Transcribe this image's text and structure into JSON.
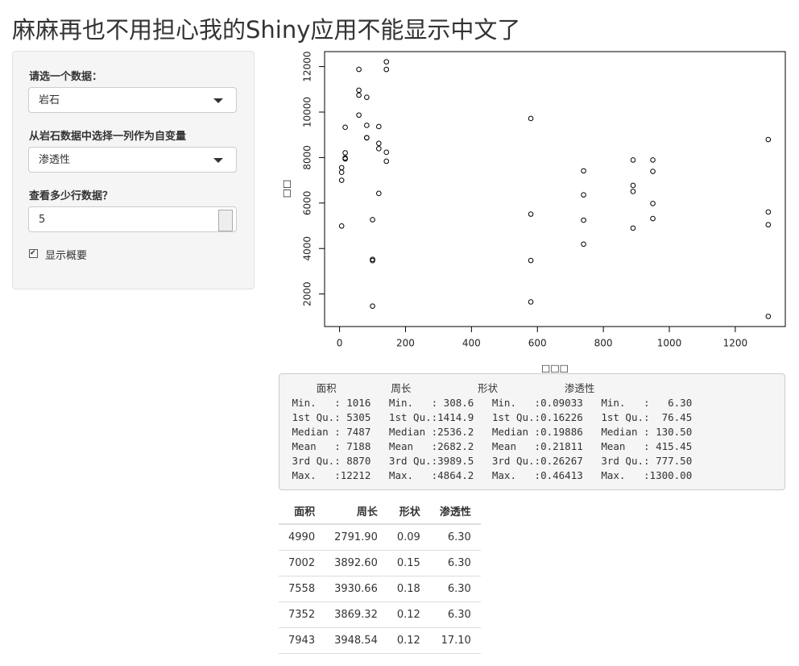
{
  "header": {
    "title": "麻麻再也不用担心我的Shiny应用不能显示中文了"
  },
  "sidebar": {
    "dataset_label": "请选一个数据：",
    "dataset_value": "岩石",
    "variable_label": "从岩石数据中选择一列作为自变量",
    "variable_value": "渗透性",
    "rows_label": "查看多少行数据？",
    "rows_value": "5",
    "summary_checkbox": "显示概要"
  },
  "chart_data": {
    "type": "scatter",
    "x_label": "□□□",
    "y_label": "□□",
    "x": [
      6.3,
      6.3,
      6.3,
      6.3,
      17.1,
      17.1,
      17.1,
      17.1,
      119,
      119,
      119,
      119,
      82.4,
      82.4,
      82.4,
      82.4,
      58.6,
      58.6,
      58.6,
      58.6,
      142,
      142,
      142,
      142,
      740,
      740,
      740,
      740,
      890,
      890,
      890,
      890,
      950,
      950,
      950,
      950,
      100,
      100,
      100,
      100,
      1300,
      1300,
      1300,
      1300,
      580,
      580,
      580,
      580
    ],
    "values": [
      4990,
      7002,
      7558,
      7352,
      7943,
      7979,
      9333,
      8209,
      8393,
      6425,
      9364,
      8624,
      10651,
      8868,
      9417,
      8874,
      10962,
      10743,
      11878,
      9867,
      7838,
      11876,
      12212,
      8233,
      6360,
      4193,
      7416,
      5246,
      6509,
      4895,
      6775,
      7894,
      5980,
      5318,
      7392,
      7894,
      3469,
      1468,
      3524,
      5267,
      5048,
      1016,
      5605,
      8793,
      3475,
      1651,
      5514,
      9718
    ],
    "xlim": [
      -45.4,
      1351.7
    ],
    "ylim": [
      568.2,
      12659.8
    ],
    "xticks": [
      0,
      200,
      400,
      600,
      800,
      1000,
      1200
    ],
    "yticks": [
      2000,
      4000,
      6000,
      8000,
      10000,
      12000
    ],
    "grid": false,
    "color": "#000000"
  },
  "summary": {
    "lines": [
      "     面积         周长           形状           渗透性     ",
      " Min.   : 1016   Min.   : 308.6   Min.   :0.09033   Min.   :   6.30  ",
      " 1st Qu.: 5305   1st Qu.:1414.9   1st Qu.:0.16226   1st Qu.:  76.45  ",
      " Median : 7487   Median :2536.2   Median :0.19886   Median : 130.50  ",
      " Mean   : 7188   Mean   :2682.2   Mean   :0.21811   Mean   : 415.45  ",
      " 3rd Qu.: 8870   3rd Qu.:3989.5   3rd Qu.:0.26267   3rd Qu.: 777.50  ",
      " Max.   :12212   Max.   :4864.2   Max.   :0.46413   Max.   :1300.00  "
    ]
  },
  "table": {
    "columns": [
      "面积",
      "周长",
      "形状",
      "渗透性"
    ],
    "rows": [
      [
        "4990",
        "2791.90",
        "0.09",
        "6.30"
      ],
      [
        "7002",
        "3892.60",
        "0.15",
        "6.30"
      ],
      [
        "7558",
        "3930.66",
        "0.18",
        "6.30"
      ],
      [
        "7352",
        "3869.32",
        "0.12",
        "6.30"
      ],
      [
        "7943",
        "3948.54",
        "0.12",
        "17.10"
      ]
    ]
  }
}
